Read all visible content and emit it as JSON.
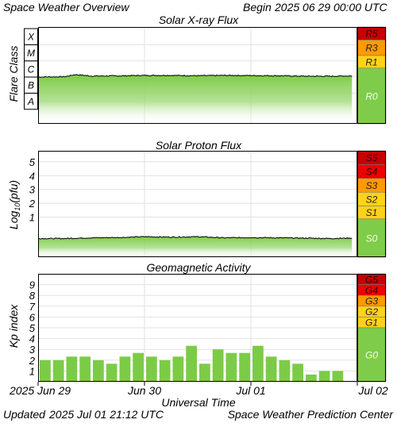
{
  "header": {
    "title": "Space Weather Overview",
    "begin_label": "Begin",
    "begin_date": "2025 06 29 00:00 UTC"
  },
  "footer": {
    "updated_label": "Updated",
    "updated_date": "2025 Jul 01 21:12 UTC",
    "center": "Space Weather Prediction Center"
  },
  "x_axis": {
    "label": "Universal Time",
    "ticks": [
      {
        "day": 0,
        "label": "2025 Jun 29"
      },
      {
        "day": 1,
        "label": "Jun 30"
      },
      {
        "day": 2,
        "label": "Jul 01"
      },
      {
        "day": 3,
        "label": "Jul 02"
      }
    ],
    "range_days": [
      0,
      3
    ]
  },
  "colors": {
    "fill_green": "#7ccb45",
    "scale_green": "#7fcc4a",
    "yellow": "#ffd21a",
    "orange": "#ff9a00",
    "red": "#ee0000",
    "dark_red": "#c80000",
    "grid": "#e2e2e2",
    "trace": "#111111"
  },
  "chart_data": [
    {
      "type": "area",
      "title": "Solar X-ray Flux",
      "ylabel": "Flare Class",
      "y_scale": "log",
      "y_levels": [
        "A",
        "B",
        "C",
        "M",
        "X"
      ],
      "ylim_log10": [
        -8.9,
        -2.9
      ],
      "baseline_log10": -6.05,
      "series": [
        {
          "x_days": [
            0.0,
            0.25,
            0.35,
            0.5,
            0.75,
            1.0,
            1.25,
            1.5,
            1.75,
            2.0,
            2.25,
            2.5,
            2.75,
            2.95
          ],
          "log10_flux": [
            -6.0,
            -5.98,
            -5.85,
            -5.94,
            -5.93,
            -5.9,
            -5.9,
            -5.92,
            -5.9,
            -5.91,
            -5.92,
            -5.95,
            -5.95,
            -5.93
          ]
        }
      ],
      "scale_bar": [
        {
          "label": "R5",
          "color": "#c80000"
        },
        {
          "label": "R3",
          "color": "#ff9a00"
        },
        {
          "label": "R1",
          "color": "#ffd21a"
        },
        {
          "label": "R0",
          "color": "#7fcc4a"
        }
      ]
    },
    {
      "type": "area",
      "title": "Solar Proton Flux",
      "ylabel": "Log10(pfu)",
      "ylabel_main": "Log",
      "ylabel_sub": "10",
      "ylabel_tail": "(pfu)",
      "ylim": [
        -1.9,
        5.8
      ],
      "yticks": [
        1,
        2,
        3,
        4,
        5
      ],
      "series": [
        {
          "x_days": [
            0.0,
            0.25,
            0.5,
            0.75,
            1.0,
            1.25,
            1.5,
            1.75,
            2.0,
            2.25,
            2.5,
            2.75,
            2.95
          ],
          "log10_pfu": [
            -0.55,
            -0.55,
            -0.5,
            -0.48,
            -0.42,
            -0.45,
            -0.42,
            -0.5,
            -0.48,
            -0.5,
            -0.52,
            -0.55,
            -0.52
          ]
        }
      ],
      "scale_bar": [
        {
          "label": "S5",
          "color": "#c80000"
        },
        {
          "label": "S4",
          "color": "#ee0000"
        },
        {
          "label": "S3",
          "color": "#ff9a00"
        },
        {
          "label": "S2",
          "color": "#ffd21a"
        },
        {
          "label": "S1",
          "color": "#ffd21a"
        },
        {
          "label": "S0",
          "color": "#7fcc4a"
        }
      ]
    },
    {
      "type": "bar",
      "title": "Geomagnetic Activity",
      "ylabel": "Kp index",
      "ylim": [
        0,
        10
      ],
      "yticks": [
        1,
        2,
        3,
        4,
        5,
        6,
        7,
        8,
        9
      ],
      "bar_width_days": 0.125,
      "x_start_days": [
        0.0,
        0.125,
        0.25,
        0.375,
        0.5,
        0.625,
        0.75,
        0.875,
        1.0,
        1.125,
        1.25,
        1.375,
        1.5,
        1.625,
        1.75,
        1.875,
        2.0,
        2.125,
        2.25,
        2.375,
        2.5,
        2.625,
        2.75
      ],
      "values": [
        2.0,
        2.0,
        2.33,
        2.33,
        2.0,
        1.67,
        2.33,
        2.67,
        2.33,
        2.0,
        2.33,
        3.33,
        1.67,
        3.0,
        2.67,
        2.67,
        3.33,
        2.33,
        2.0,
        1.67,
        0.67,
        1.0,
        1.0
      ],
      "scale_bar": [
        {
          "label": "G5",
          "color": "#c80000"
        },
        {
          "label": "G4",
          "color": "#ee0000"
        },
        {
          "label": "G3",
          "color": "#ff9a00"
        },
        {
          "label": "G2",
          "color": "#ffd21a"
        },
        {
          "label": "G1",
          "color": "#ffd21a"
        },
        {
          "label": "G0",
          "color": "#7fcc4a"
        }
      ]
    }
  ]
}
